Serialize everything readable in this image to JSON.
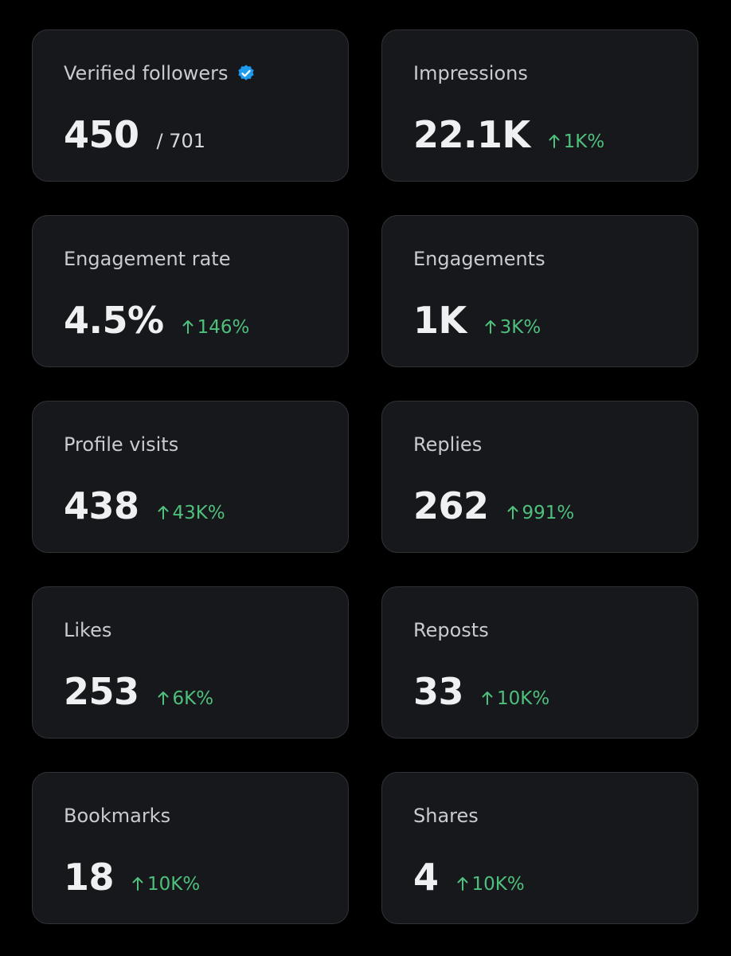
{
  "cards": [
    {
      "label": "Verified followers",
      "value": "450",
      "total": "/ 701",
      "verified": true
    },
    {
      "label": "Impressions",
      "value": "22.1K",
      "change": "1K%"
    },
    {
      "label": "Engagement rate",
      "value": "4.5%",
      "change": "146%"
    },
    {
      "label": "Engagements",
      "value": "1K",
      "change": "3K%"
    },
    {
      "label": "Profile visits",
      "value": "438",
      "change": "43K%"
    },
    {
      "label": "Replies",
      "value": "262",
      "change": "991%"
    },
    {
      "label": "Likes",
      "value": "253",
      "change": "6K%"
    },
    {
      "label": "Reposts",
      "value": "33",
      "change": "10K%"
    },
    {
      "label": "Bookmarks",
      "value": "18",
      "change": "10K%"
    },
    {
      "label": "Shares",
      "value": "4",
      "change": "10K%"
    }
  ]
}
